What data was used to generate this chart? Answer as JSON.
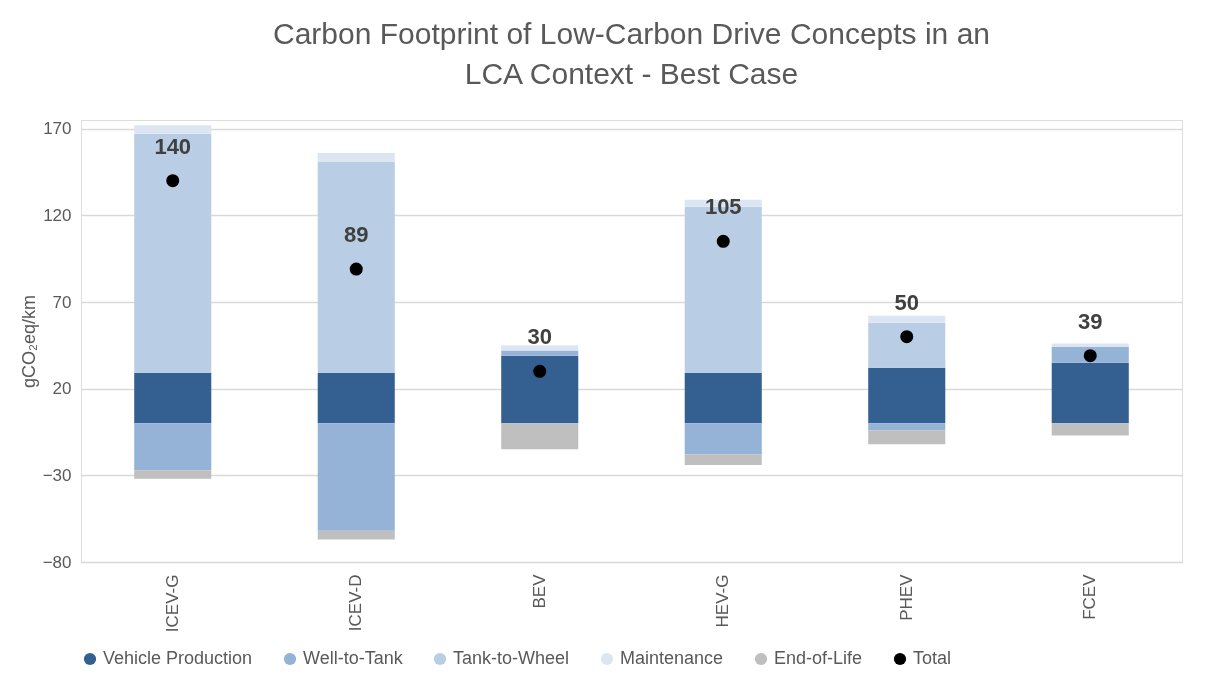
{
  "chart_data": {
    "type": "bar",
    "stacked": true,
    "title": "Carbon Footprint of Low-Carbon Drive Concepts in an LCA Context - Best Case",
    "ylabel": "gCO₂eq/km",
    "categories": [
      "ICEV-G",
      "ICEV-D",
      "BEV",
      "HEV-G",
      "PHEV",
      "FCEV"
    ],
    "series": [
      {
        "name": "Vehicle Production",
        "color": "#335f91",
        "values": [
          29,
          29,
          39,
          29,
          32,
          35
        ]
      },
      {
        "name": "Well-to-Tank",
        "color": "#95b3d7",
        "values": [
          -27,
          -62,
          3,
          -18,
          -4,
          9
        ]
      },
      {
        "name": "Tank-to-Wheel",
        "color": "#b9cde5",
        "values": [
          138,
          122,
          0,
          96,
          26,
          0
        ]
      },
      {
        "name": "Maintenance",
        "color": "#dce6f2",
        "values": [
          5,
          5,
          3,
          4,
          4,
          2
        ]
      },
      {
        "name": "End-of-Life",
        "color": "#bfbfbf",
        "values": [
          -5,
          -5,
          -15,
          -6,
          -8,
          -7
        ]
      },
      {
        "name": "Total",
        "type": "scatter",
        "marker": "circle",
        "color": "#000000",
        "values": [
          140,
          89,
          30,
          105,
          50,
          39
        ],
        "value_labels": [
          "140",
          "89",
          "30",
          "105",
          "50",
          "39"
        ]
      }
    ],
    "ylim": [
      -80,
      175
    ],
    "yticks": [
      -80,
      -30,
      20,
      70,
      120,
      170
    ],
    "grid": "y",
    "legend": "bottom"
  }
}
